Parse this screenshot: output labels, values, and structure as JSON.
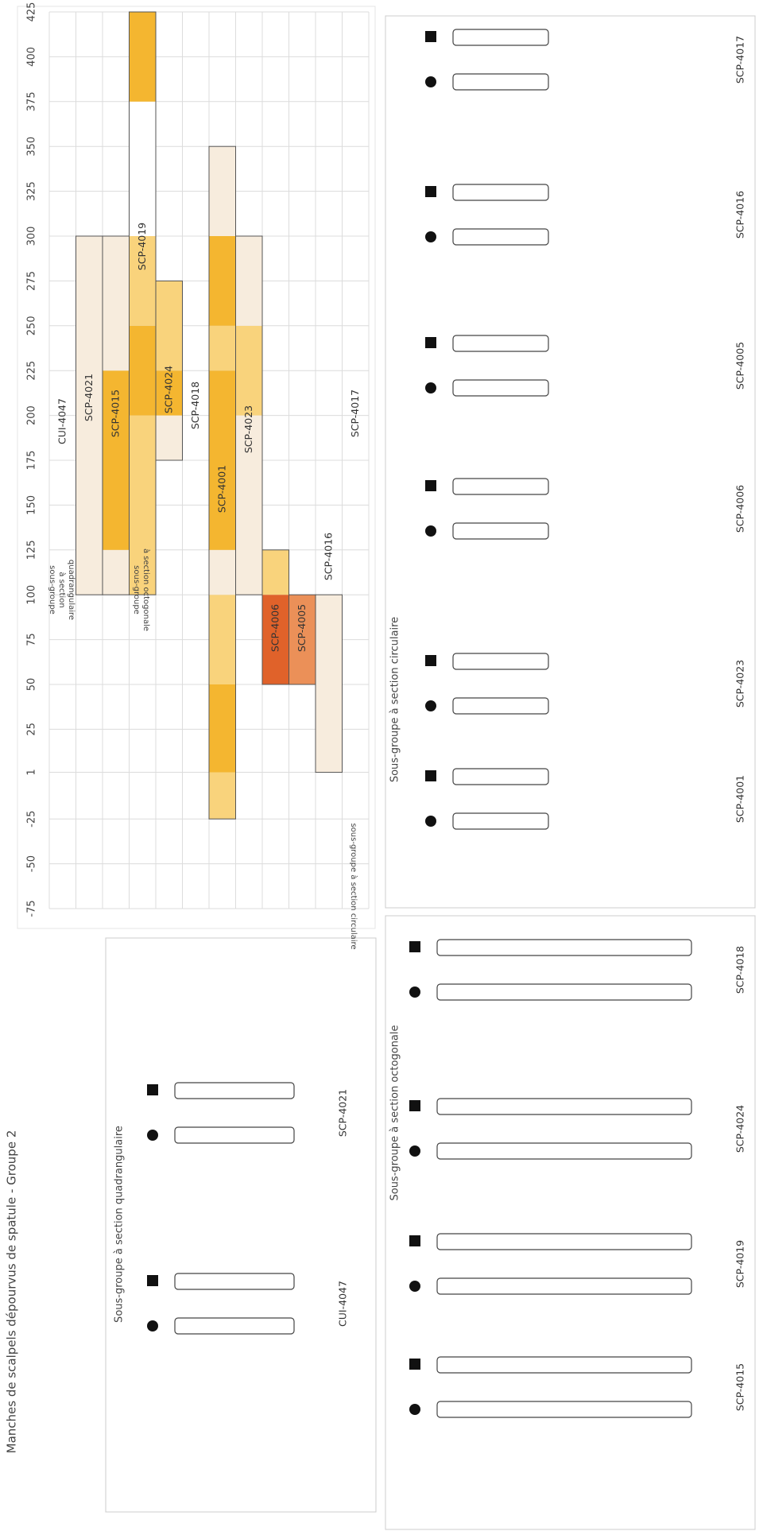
{
  "title": "Manches de scalpels dépourvus de spatule - Groupe 2",
  "chart_data": {
    "type": "range-bar",
    "xlim": [
      -75,
      425
    ],
    "xticks": [
      -75,
      -50,
      -25,
      1,
      25,
      50,
      75,
      100,
      125,
      150,
      175,
      200,
      225,
      250,
      275,
      300,
      325,
      350,
      375,
      400,
      425
    ],
    "grid": true,
    "rows": [
      {
        "name": "CUI-4047",
        "segments": []
      },
      {
        "name": "SCP-4021",
        "segments": [
          {
            "from": 100,
            "to": 300,
            "color": "#f7ecdd"
          }
        ]
      },
      {
        "name": "SCP-4015",
        "segments": [
          {
            "from": 100,
            "to": 125,
            "color": "#f7ecdd"
          },
          {
            "from": 125,
            "to": 225,
            "color": "#f4b630"
          },
          {
            "from": 225,
            "to": 300,
            "color": "#f7ecdd"
          }
        ]
      },
      {
        "name": "SCP-4019",
        "segments": [
          {
            "from": 100,
            "to": 200,
            "color": "#f9d37c"
          },
          {
            "from": 200,
            "to": 250,
            "color": "#f4b630"
          },
          {
            "from": 250,
            "to": 300,
            "color": "#f9d37c"
          },
          {
            "from": 300,
            "to": 375,
            "color": "#ffffff"
          },
          {
            "from": 375,
            "to": 425,
            "color": "#f4b630"
          }
        ]
      },
      {
        "name": "SCP-4024",
        "segments": [
          {
            "from": 175,
            "to": 200,
            "color": "#f7ecdd"
          },
          {
            "from": 200,
            "to": 225,
            "color": "#f4b630"
          },
          {
            "from": 225,
            "to": 275,
            "color": "#f9d37c"
          }
        ]
      },
      {
        "name": "SCP-4018",
        "segments": []
      },
      {
        "name": "SCP-4001",
        "segments": [
          {
            "from": -25,
            "to": 1,
            "color": "#f9d37c"
          },
          {
            "from": 1,
            "to": 50,
            "color": "#f4b630"
          },
          {
            "from": 50,
            "to": 100,
            "color": "#f9d37c"
          },
          {
            "from": 100,
            "to": 125,
            "color": "#f7ecdd"
          },
          {
            "from": 125,
            "to": 225,
            "color": "#f4b630"
          },
          {
            "from": 225,
            "to": 250,
            "color": "#f9d37c"
          },
          {
            "from": 250,
            "to": 300,
            "color": "#f4b630"
          },
          {
            "from": 300,
            "to": 350,
            "color": "#f7ecdd"
          }
        ]
      },
      {
        "name": "SCP-4023",
        "segments": [
          {
            "from": 100,
            "to": 200,
            "color": "#f7ecdd"
          },
          {
            "from": 200,
            "to": 250,
            "color": "#f9d37c"
          },
          {
            "from": 250,
            "to": 300,
            "color": "#f7ecdd"
          }
        ]
      },
      {
        "name": "SCP-4006",
        "segments": [
          {
            "from": 50,
            "to": 100,
            "color": "#e0622a"
          },
          {
            "from": 100,
            "to": 125,
            "color": "#f9d37c"
          }
        ]
      },
      {
        "name": "SCP-4005",
        "segments": [
          {
            "from": 50,
            "to": 100,
            "color": "#eb9058"
          }
        ]
      },
      {
        "name": "SCP-4016",
        "segments": [
          {
            "from": 1,
            "to": 100,
            "color": "#f7ecdd"
          }
        ]
      },
      {
        "name": "SCP-4017",
        "segments": []
      }
    ],
    "group_labels": [
      [
        "sous-groupe",
        "à section",
        "quadrangulaire"
      ],
      [
        "sous-groupe",
        "à section octogonale"
      ],
      [
        "sous-groupe à section circulaire"
      ]
    ]
  },
  "panels": [
    {
      "title": "Sous-groupe à section quadrangulaire",
      "items": [
        "CUI-4047",
        "SCP-4021"
      ]
    },
    {
      "title": "Sous-groupe à section octogonale",
      "items": [
        "SCP-4015",
        "SCP-4019",
        "SCP-4024",
        "SCP-4018"
      ]
    },
    {
      "title": "Sous-groupe à section circulaire",
      "items": [
        "SCP-4001",
        "SCP-4023",
        "SCP-4006",
        "SCP-4005",
        "SCP-4016",
        "SCP-4017"
      ]
    }
  ]
}
